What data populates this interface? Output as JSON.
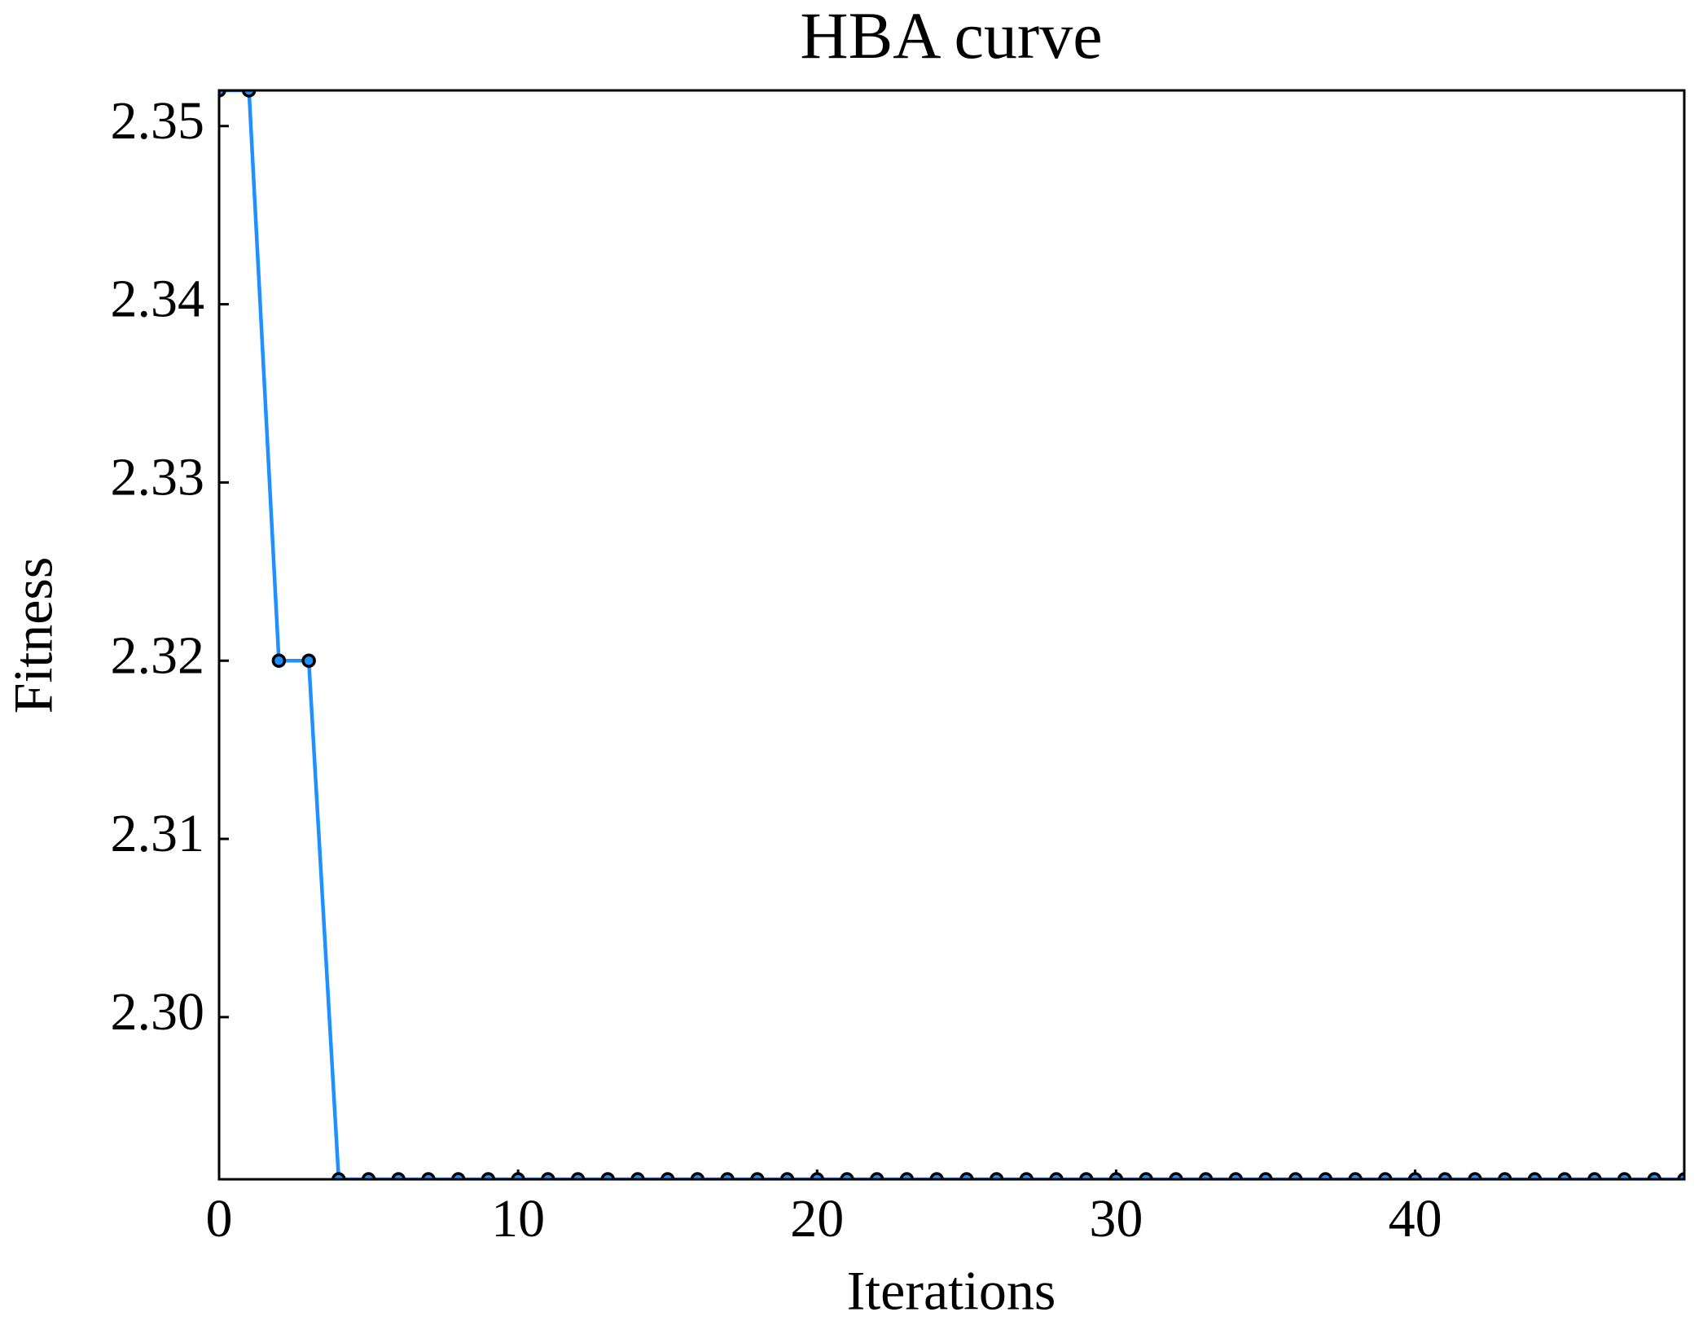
{
  "chart_data": {
    "type": "line",
    "title": "HBA curve",
    "xlabel": "Iterations",
    "ylabel": "Fitness",
    "x": [
      0,
      1,
      2,
      3,
      4,
      5,
      6,
      7,
      8,
      9,
      10,
      11,
      12,
      13,
      14,
      15,
      16,
      17,
      18,
      19,
      20,
      21,
      22,
      23,
      24,
      25,
      26,
      27,
      28,
      29,
      30,
      31,
      32,
      33,
      34,
      35,
      36,
      37,
      38,
      39,
      40,
      41,
      42,
      43,
      44,
      45,
      46,
      47,
      48,
      49
    ],
    "values": [
      2.352,
      2.352,
      2.32,
      2.32,
      2.2909,
      2.2909,
      2.2909,
      2.2909,
      2.2909,
      2.2909,
      2.2909,
      2.2909,
      2.2909,
      2.2909,
      2.2909,
      2.2909,
      2.2909,
      2.2909,
      2.2909,
      2.2909,
      2.2909,
      2.2909,
      2.2909,
      2.2909,
      2.2909,
      2.2909,
      2.2909,
      2.2909,
      2.2909,
      2.2909,
      2.2909,
      2.2909,
      2.2909,
      2.2909,
      2.2909,
      2.2909,
      2.2909,
      2.2909,
      2.2909,
      2.2909,
      2.2909,
      2.2909,
      2.2909,
      2.2909,
      2.2909,
      2.2909,
      2.2909,
      2.2909,
      2.2909,
      2.2909
    ],
    "color": "#1e90ff",
    "marker_edge_color": "#000000",
    "xlim": [
      0,
      49
    ],
    "xticks": [
      0,
      10,
      20,
      30,
      40
    ],
    "ylim": [
      2.2909,
      2.352
    ],
    "yticks": [
      {
        "value": 2.3,
        "label": "2.30"
      },
      2.31,
      2.32,
      2.33,
      2.34,
      2.35
    ],
    "grid": false
  }
}
